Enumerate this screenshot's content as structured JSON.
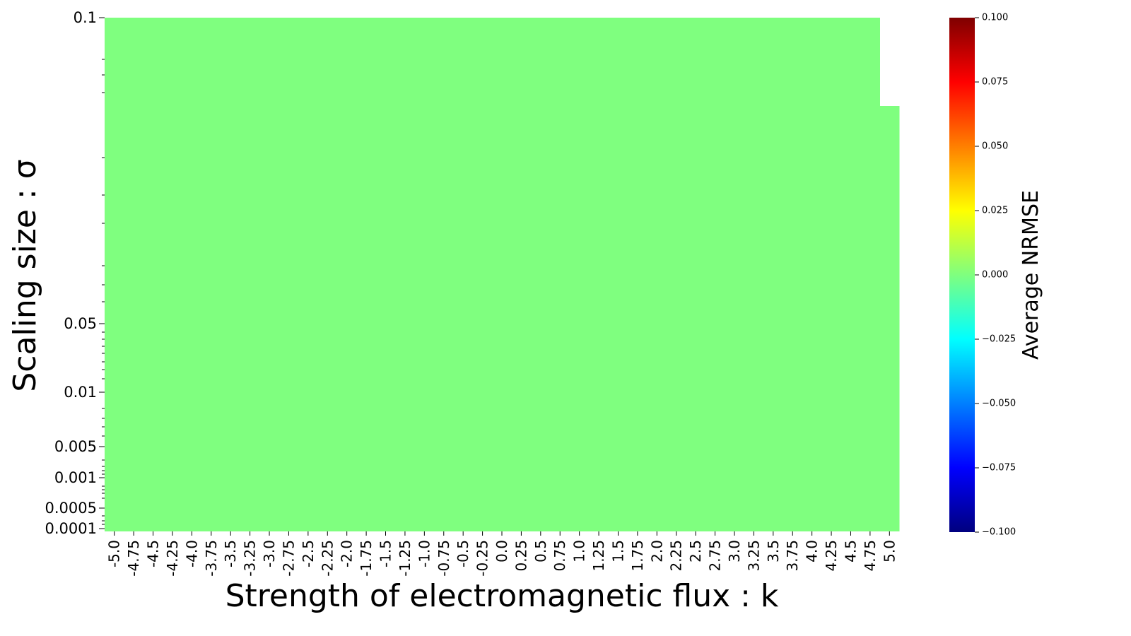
{
  "chart_data": {
    "type": "heatmap",
    "title": "",
    "xlabel": "Strength of electromagnetic flux : k",
    "ylabel": "Scaling size : σ",
    "x_categories": [
      "-5.0",
      "-4.75",
      "-4.5",
      "-4.25",
      "-4.0",
      "-3.75",
      "-3.5",
      "-3.25",
      "-3.0",
      "-2.75",
      "-2.5",
      "-2.25",
      "-2.0",
      "-1.75",
      "-1.5",
      "-1.25",
      "-1.0",
      "-0.75",
      "-0.5",
      "-0.25",
      "0.0",
      "0.25",
      "0.5",
      "0.75",
      "1.0",
      "1.25",
      "1.5",
      "1.75",
      "2.0",
      "2.25",
      "2.5",
      "2.75",
      "3.0",
      "3.25",
      "3.5",
      "3.75",
      "4.0",
      "4.25",
      "4.5",
      "4.75",
      "5.0"
    ],
    "y_tick_labels": [
      "0.1",
      "0.05",
      "0.01",
      "0.005",
      "0.001",
      "0.0005",
      "0.0001"
    ],
    "y_tick_values": [
      0.1,
      0.05,
      0.01,
      0.005,
      0.001,
      0.0005,
      0.0001
    ],
    "cell_value": 0.0,
    "missing_region": "top-right",
    "colorbar": {
      "label": "Average NRMSE",
      "min": -0.1,
      "max": 0.1,
      "ticks": [
        "0.100",
        "0.075",
        "0.050",
        "0.025",
        "0.000",
        "−0.025",
        "−0.050",
        "−0.075",
        "−0.100"
      ],
      "colormap": "jet",
      "colors": [
        "#00007f",
        "#0000ff",
        "#007fff",
        "#00ffff",
        "#7fff7f",
        "#ffff00",
        "#ff7f00",
        "#ff0000",
        "#7f0000"
      ]
    }
  }
}
